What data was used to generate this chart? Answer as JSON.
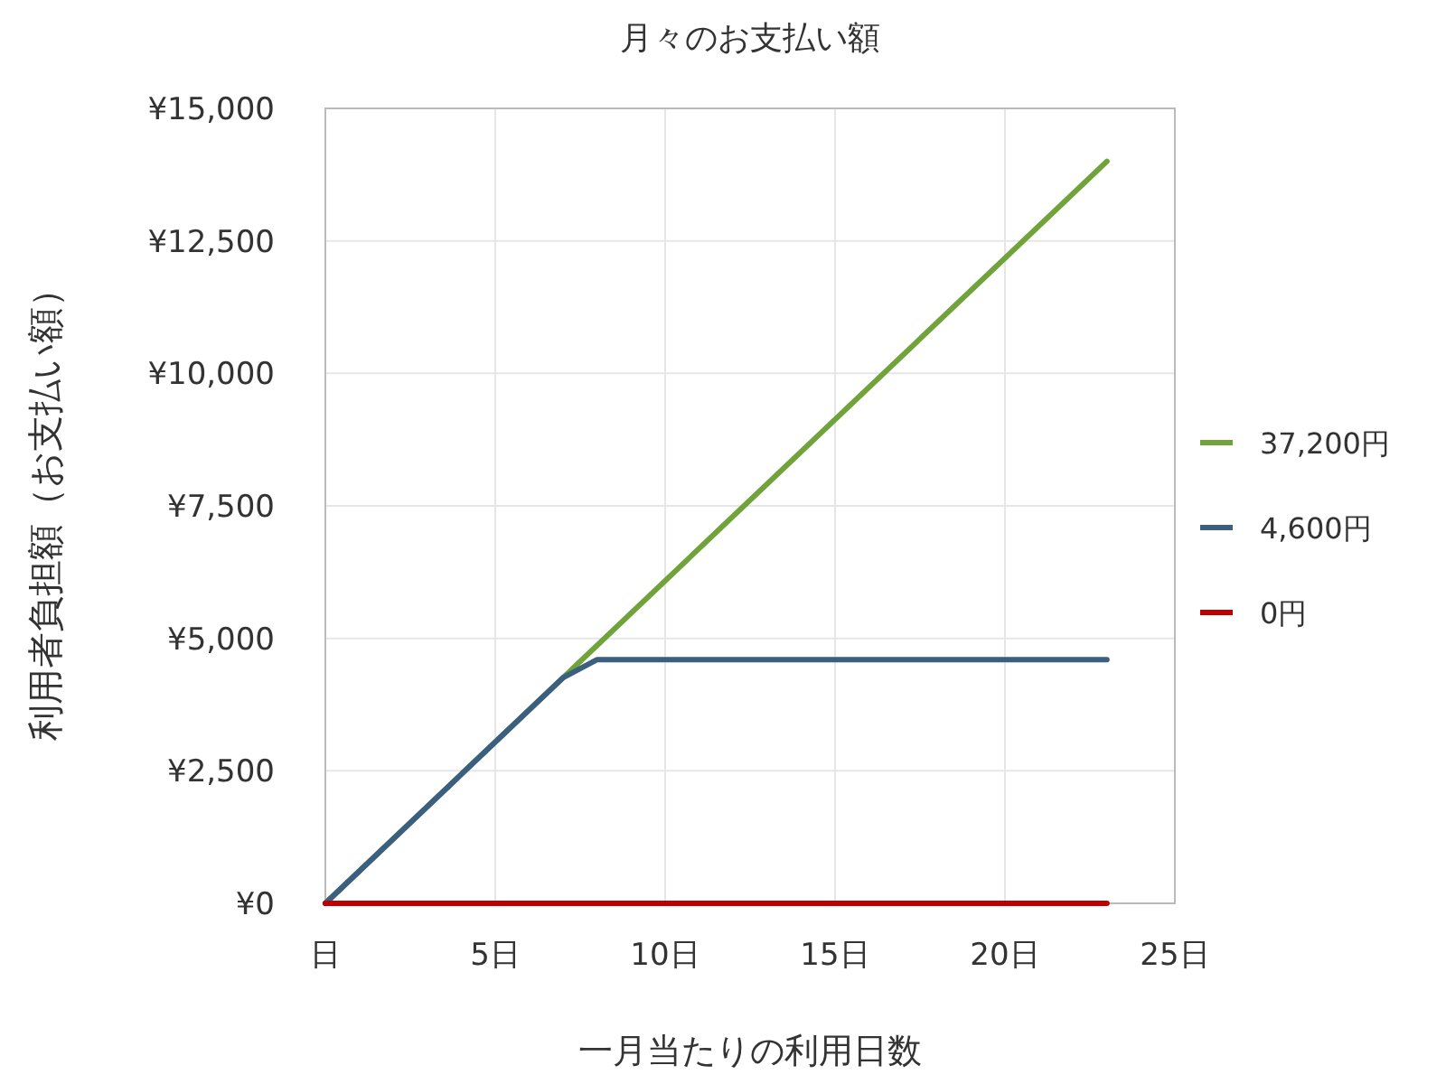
{
  "chart_data": {
    "type": "line",
    "title": "月々のお支払い額",
    "xlabel": "一月当たりの利用日数",
    "ylabel": "利用者負担額（お支払い額）",
    "xlim": [
      0,
      25
    ],
    "xticks": [
      {
        "value": 0,
        "label": "日"
      },
      {
        "value": 5,
        "label": "5日"
      },
      {
        "value": 10,
        "label": "10日"
      },
      {
        "value": 15,
        "label": "15日"
      },
      {
        "value": 20,
        "label": "20日"
      },
      {
        "value": 25,
        "label": "25日"
      }
    ],
    "ylim": [
      0,
      15000
    ],
    "yticks": [
      {
        "value": 0,
        "label": "¥0"
      },
      {
        "value": 2500,
        "label": "¥2,500"
      },
      {
        "value": 5000,
        "label": "¥5,000"
      },
      {
        "value": 7500,
        "label": "¥7,500"
      },
      {
        "value": 10000,
        "label": "¥10,000"
      },
      {
        "value": 12500,
        "label": "¥12,500"
      },
      {
        "value": 15000,
        "label": "¥15,000"
      }
    ],
    "grid": true,
    "legend": "right",
    "marker": "none",
    "line_style": "solid",
    "series": [
      {
        "name": "37,200円",
        "color": "#70a33a",
        "x": [
          0,
          23
        ],
        "values": [
          0,
          14000
        ]
      },
      {
        "name": "4,600円",
        "color": "#3a5f80",
        "x": [
          0,
          7,
          8,
          23
        ],
        "values": [
          0,
          4260,
          4600,
          4600
        ]
      },
      {
        "name": "0円",
        "color": "#c00000",
        "x": [
          0,
          23
        ],
        "values": [
          0,
          0
        ]
      }
    ]
  }
}
